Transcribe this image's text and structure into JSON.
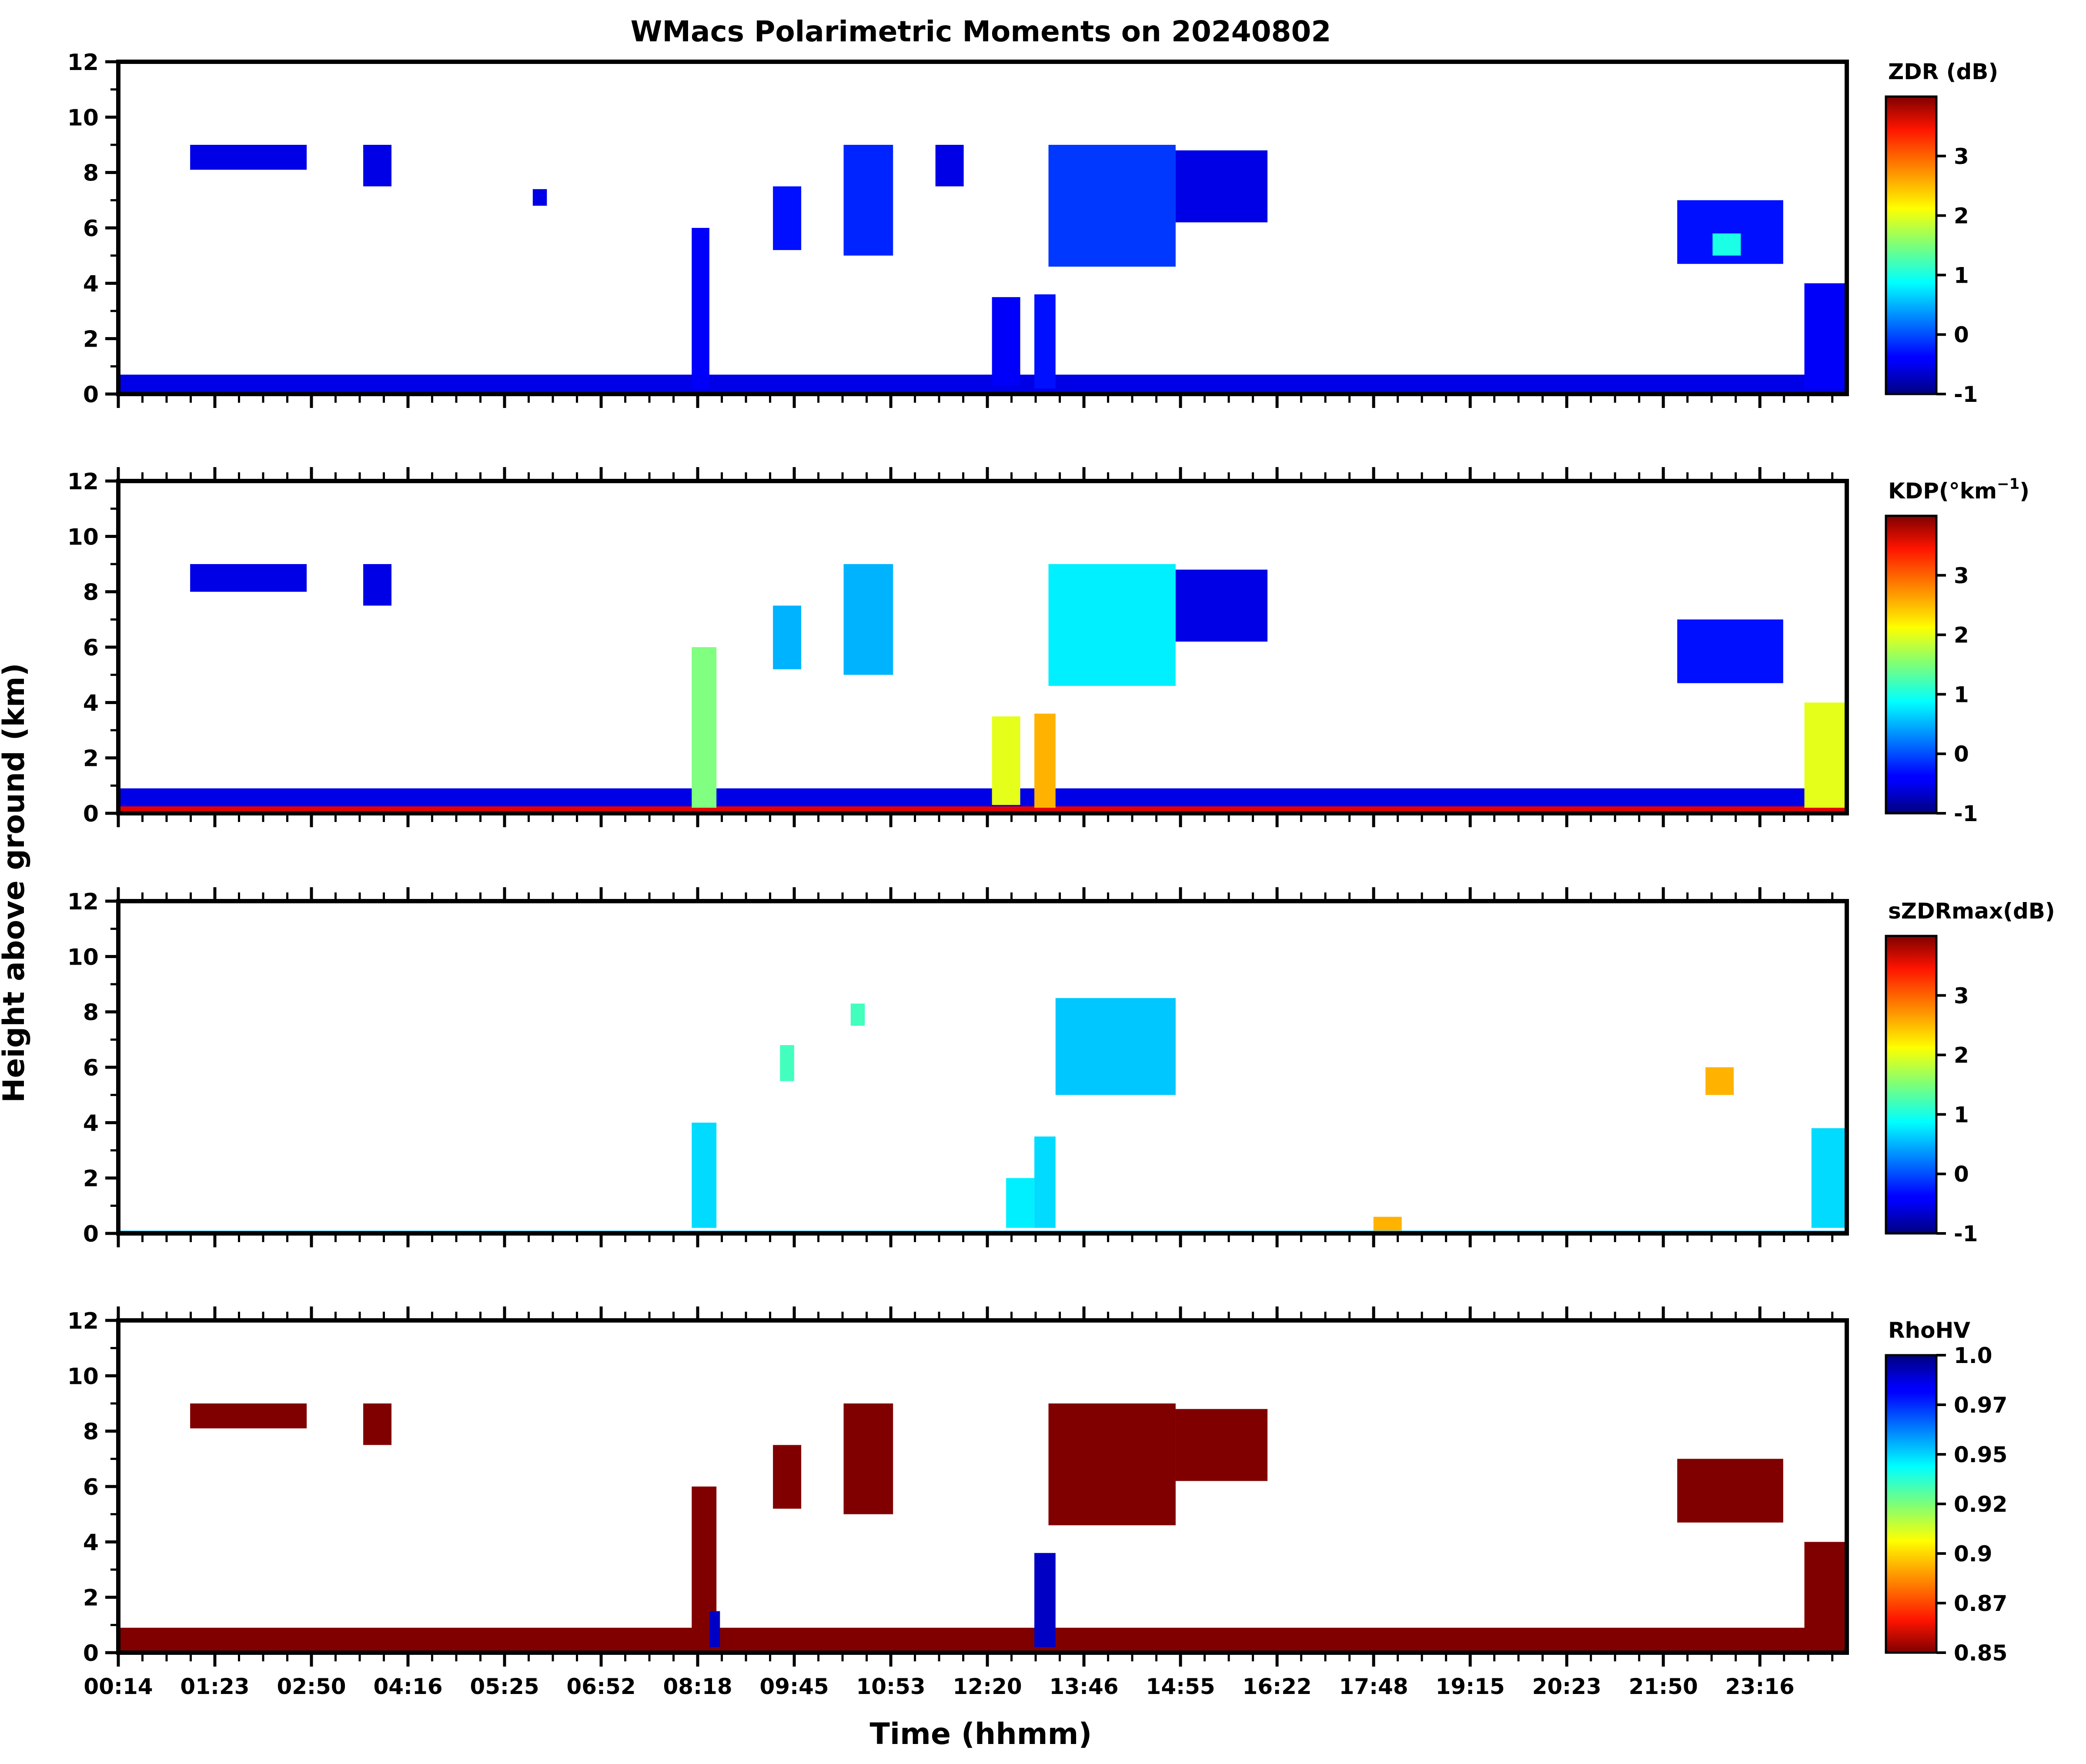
{
  "figure": {
    "title": "WMacs Polarimetric Moments on 20240802",
    "ylabel": "Height above ground (km)",
    "xlabel": "Time (hhmm)"
  },
  "chart_data": [
    {
      "type": "heatmap",
      "variable": "ZDR",
      "colorbar_label": "ZDR (dB)",
      "colormap": "jet",
      "vmin": -1,
      "vmax": 4,
      "colorbar_ticks": [
        -1,
        0,
        1,
        2,
        3
      ],
      "colorbar_tick_labels": [
        "-1",
        "0",
        "1",
        "2",
        "3"
      ],
      "ylim": [
        0,
        12
      ],
      "yticks": [
        0,
        2,
        4,
        6,
        8,
        10,
        12
      ],
      "xlim_hours": [
        0.2333,
        24.7
      ],
      "xticks": [
        "00:14",
        "01:23",
        "02:50",
        "04:16",
        "05:25",
        "06:52",
        "08:18",
        "09:45",
        "10:53",
        "12:20",
        "13:46",
        "14:55",
        "16:22",
        "17:48",
        "19:15",
        "20:23",
        "21:50",
        "23:16"
      ],
      "echo_regions": [
        {
          "t0": 0.2333,
          "t1": 24.7,
          "h0": 0,
          "h1": 0.7,
          "value": -0.5
        },
        {
          "t0": 1.25,
          "t1": 2.9,
          "h0": 8.1,
          "h1": 9.0,
          "value": -0.5
        },
        {
          "t0": 3.7,
          "t1": 4.1,
          "h0": 7.5,
          "h1": 9.0,
          "value": -0.5
        },
        {
          "t0": 6.1,
          "t1": 6.3,
          "h0": 6.8,
          "h1": 7.4,
          "value": -0.5
        },
        {
          "t0": 8.35,
          "t1": 8.6,
          "h0": 0.2,
          "h1": 6.0,
          "value": -0.4
        },
        {
          "t0": 9.5,
          "t1": 9.9,
          "h0": 5.2,
          "h1": 7.5,
          "value": -0.3
        },
        {
          "t0": 10.5,
          "t1": 11.2,
          "h0": 5.0,
          "h1": 9.0,
          "value": -0.2
        },
        {
          "t0": 11.8,
          "t1": 12.2,
          "h0": 7.5,
          "h1": 9.0,
          "value": -0.5
        },
        {
          "t0": 12.6,
          "t1": 13.0,
          "h0": 0.3,
          "h1": 3.5,
          "value": -0.4
        },
        {
          "t0": 13.2,
          "t1": 13.5,
          "h0": 0.2,
          "h1": 3.6,
          "value": -0.3
        },
        {
          "t0": 13.4,
          "t1": 15.2,
          "h0": 4.6,
          "h1": 9.0,
          "value": -0.1
        },
        {
          "t0": 15.2,
          "t1": 16.5,
          "h0": 6.2,
          "h1": 8.8,
          "value": -0.5
        },
        {
          "t0": 22.3,
          "t1": 23.8,
          "h0": 4.7,
          "h1": 7.0,
          "value": -0.3
        },
        {
          "t0": 22.8,
          "t1": 23.2,
          "h0": 5.0,
          "h1": 5.8,
          "value": 1.0
        },
        {
          "t0": 24.1,
          "t1": 24.7,
          "h0": 0.2,
          "h1": 4.0,
          "value": -0.4
        }
      ]
    },
    {
      "type": "heatmap",
      "variable": "KDP",
      "colorbar_label": "KDP(°km",
      "colorbar_label_superscript": "−1",
      "colorbar_label_suffix": ")",
      "colormap": "jet",
      "vmin": -1,
      "vmax": 4,
      "colorbar_ticks": [
        -1,
        0,
        1,
        2,
        3
      ],
      "colorbar_tick_labels": [
        "-1",
        "0",
        "1",
        "2",
        "3"
      ],
      "ylim": [
        0,
        12
      ],
      "yticks": [
        0,
        2,
        4,
        6,
        8,
        10,
        12
      ],
      "xlim_hours": [
        0.2333,
        24.7
      ],
      "xticks": [
        "00:14",
        "01:23",
        "02:50",
        "04:16",
        "05:25",
        "06:52",
        "08:18",
        "09:45",
        "10:53",
        "12:20",
        "13:46",
        "14:55",
        "16:22",
        "17:48",
        "19:15",
        "20:23",
        "21:50",
        "23:16"
      ],
      "echo_regions": [
        {
          "t0": 0.2333,
          "t1": 24.7,
          "h0": 0,
          "h1": 0.9,
          "value": -0.5
        },
        {
          "t0": 0.2333,
          "t1": 24.7,
          "h0": 0,
          "h1": 0.25,
          "value": 3.5
        },
        {
          "t0": 1.25,
          "t1": 2.9,
          "h0": 8.0,
          "h1": 9.0,
          "value": -0.5
        },
        {
          "t0": 3.7,
          "t1": 4.1,
          "h0": 7.5,
          "h1": 9.0,
          "value": -0.5
        },
        {
          "t0": 8.35,
          "t1": 8.7,
          "h0": 0.2,
          "h1": 6.0,
          "value": 1.5
        },
        {
          "t0": 9.5,
          "t1": 9.9,
          "h0": 5.2,
          "h1": 7.5,
          "value": 0.5
        },
        {
          "t0": 10.5,
          "t1": 11.2,
          "h0": 5.0,
          "h1": 9.0,
          "value": 0.5
        },
        {
          "t0": 12.6,
          "t1": 13.0,
          "h0": 0.3,
          "h1": 3.5,
          "value": 2.0
        },
        {
          "t0": 13.2,
          "t1": 13.5,
          "h0": 0.2,
          "h1": 3.6,
          "value": 2.5
        },
        {
          "t0": 13.4,
          "t1": 15.2,
          "h0": 4.6,
          "h1": 9.0,
          "value": 0.8
        },
        {
          "t0": 15.2,
          "t1": 16.5,
          "h0": 6.2,
          "h1": 8.8,
          "value": -0.5
        },
        {
          "t0": 22.3,
          "t1": 23.8,
          "h0": 4.7,
          "h1": 7.0,
          "value": -0.3
        },
        {
          "t0": 24.1,
          "t1": 24.7,
          "h0": 0.2,
          "h1": 4.0,
          "value": 2.0
        }
      ]
    },
    {
      "type": "heatmap",
      "variable": "sZDRmax",
      "colorbar_label": "sZDRmax(dB)",
      "colormap": "jet",
      "vmin": -1,
      "vmax": 4,
      "colorbar_ticks": [
        -1,
        0,
        1,
        2,
        3
      ],
      "colorbar_tick_labels": [
        "-1",
        "0",
        "1",
        "2",
        "3"
      ],
      "ylim": [
        0,
        12
      ],
      "yticks": [
        0,
        2,
        4,
        6,
        8,
        10,
        12
      ],
      "xlim_hours": [
        0.2333,
        24.7
      ],
      "xticks": [
        "00:14",
        "01:23",
        "02:50",
        "04:16",
        "05:25",
        "06:52",
        "08:18",
        "09:45",
        "10:53",
        "12:20",
        "13:46",
        "14:55",
        "16:22",
        "17:48",
        "19:15",
        "20:23",
        "21:50",
        "23:16"
      ],
      "echo_regions": [
        {
          "t0": 0.2333,
          "t1": 24.7,
          "h0": 0,
          "h1": 0.1,
          "value": 0.5
        },
        {
          "t0": 8.35,
          "t1": 8.7,
          "h0": 0.2,
          "h1": 4.0,
          "value": 0.7
        },
        {
          "t0": 9.6,
          "t1": 9.8,
          "h0": 5.5,
          "h1": 6.8,
          "value": 1.2
        },
        {
          "t0": 10.6,
          "t1": 10.8,
          "h0": 7.5,
          "h1": 8.3,
          "value": 1.2
        },
        {
          "t0": 12.8,
          "t1": 13.2,
          "h0": 0.2,
          "h1": 2.0,
          "value": 0.8
        },
        {
          "t0": 13.2,
          "t1": 13.5,
          "h0": 0.2,
          "h1": 3.5,
          "value": 0.7
        },
        {
          "t0": 13.5,
          "t1": 15.2,
          "h0": 5.0,
          "h1": 8.5,
          "value": 0.6
        },
        {
          "t0": 18.0,
          "t1": 18.4,
          "h0": 0.1,
          "h1": 0.6,
          "value": 2.5
        },
        {
          "t0": 22.7,
          "t1": 23.1,
          "h0": 5.0,
          "h1": 6.0,
          "value": 2.5
        },
        {
          "t0": 24.2,
          "t1": 24.7,
          "h0": 0.2,
          "h1": 3.8,
          "value": 0.7
        }
      ]
    },
    {
      "type": "heatmap",
      "variable": "RhoHV",
      "colorbar_label": "RhoHV",
      "colormap": "jet_r",
      "vmin": 0.85,
      "vmax": 1.0,
      "colorbar_ticks": [
        0.85,
        0.875,
        0.9,
        0.925,
        0.95,
        0.975,
        1.0
      ],
      "colorbar_tick_labels": [
        "0.85",
        "0.87",
        "0.9",
        "0.92",
        "0.95",
        "0.97",
        "1.0"
      ],
      "ylim": [
        0,
        12
      ],
      "yticks": [
        0,
        2,
        4,
        6,
        8,
        10,
        12
      ],
      "xlim_hours": [
        0.2333,
        24.7
      ],
      "xticks": [
        "00:14",
        "01:23",
        "02:50",
        "04:16",
        "05:25",
        "06:52",
        "08:18",
        "09:45",
        "10:53",
        "12:20",
        "13:46",
        "14:55",
        "16:22",
        "17:48",
        "19:15",
        "20:23",
        "21:50",
        "23:16"
      ],
      "echo_regions": [
        {
          "t0": 0.2333,
          "t1": 24.7,
          "h0": 0,
          "h1": 0.9,
          "value": 0.85
        },
        {
          "t0": 1.25,
          "t1": 2.9,
          "h0": 8.1,
          "h1": 9.0,
          "value": 0.85
        },
        {
          "t0": 3.7,
          "t1": 4.1,
          "h0": 7.5,
          "h1": 9.0,
          "value": 0.85
        },
        {
          "t0": 8.35,
          "t1": 8.7,
          "h0": 0.2,
          "h1": 6.0,
          "value": 0.85
        },
        {
          "t0": 8.6,
          "t1": 8.75,
          "h0": 0.2,
          "h1": 1.5,
          "value": 0.99
        },
        {
          "t0": 9.5,
          "t1": 9.9,
          "h0": 5.2,
          "h1": 7.5,
          "value": 0.85
        },
        {
          "t0": 10.5,
          "t1": 11.2,
          "h0": 5.0,
          "h1": 9.0,
          "value": 0.85
        },
        {
          "t0": 13.2,
          "t1": 13.5,
          "h0": 0.2,
          "h1": 3.6,
          "value": 0.99
        },
        {
          "t0": 13.4,
          "t1": 15.2,
          "h0": 4.6,
          "h1": 9.0,
          "value": 0.85
        },
        {
          "t0": 15.2,
          "t1": 16.5,
          "h0": 6.2,
          "h1": 8.8,
          "value": 0.85
        },
        {
          "t0": 22.3,
          "t1": 23.8,
          "h0": 4.7,
          "h1": 7.0,
          "value": 0.85
        },
        {
          "t0": 24.1,
          "t1": 24.7,
          "h0": 0.2,
          "h1": 4.0,
          "value": 0.85
        }
      ]
    }
  ]
}
